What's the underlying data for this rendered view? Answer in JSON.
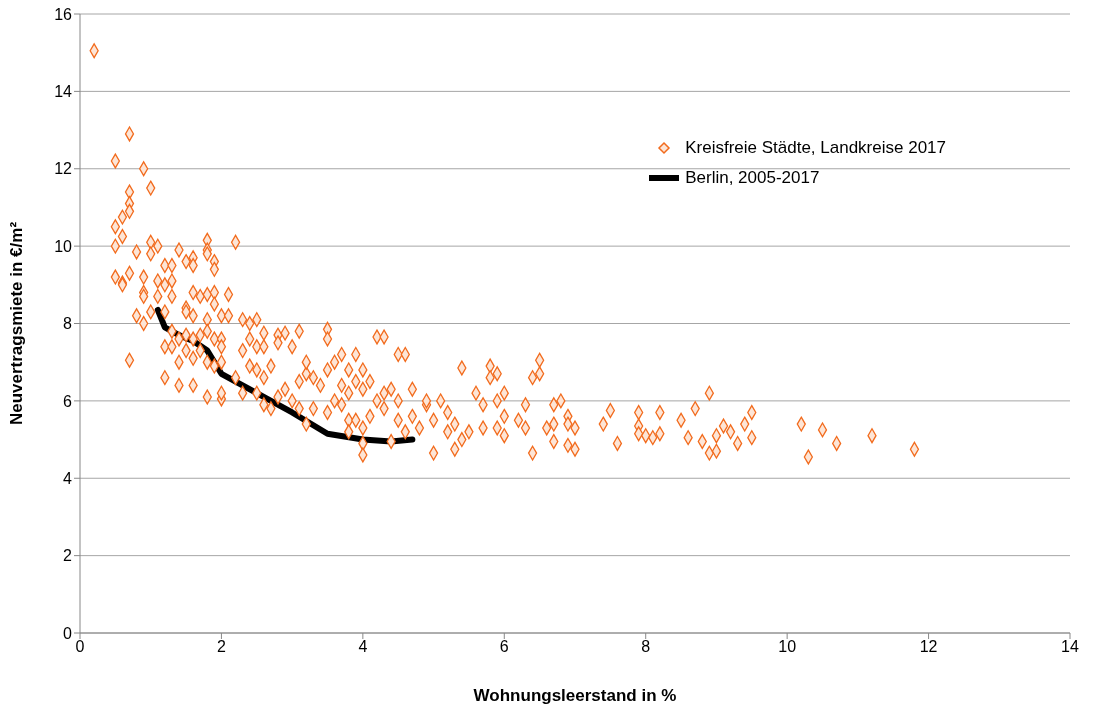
{
  "chart_data": {
    "type": "scatter",
    "xlabel": "Wohnungsleerstand in %",
    "ylabel": "Neuvertragsmiete in €/m²",
    "xlim": [
      0,
      14
    ],
    "xticks": [
      0,
      2,
      4,
      6,
      8,
      10,
      12,
      14
    ],
    "ylim": [
      0,
      16
    ],
    "yticks": [
      0,
      2,
      4,
      6,
      8,
      10,
      12,
      14,
      16
    ],
    "grid": "y",
    "legend": "top right",
    "series": [
      {
        "name": "Kreisfreie Städte, Landkreise 2017",
        "type": "scatter",
        "color": "#f26b1d",
        "marker": "diamond",
        "x": [
          0.2,
          0.5,
          0.7,
          0.9,
          1.0,
          0.7,
          0.7,
          0.7,
          0.6,
          0.5,
          0.6,
          0.5,
          1.0,
          1.1,
          1.0,
          0.8,
          0.5,
          0.6,
          0.6,
          0.7,
          0.9,
          1.1,
          1.2,
          1.3,
          1.2,
          1.3,
          1.4,
          1.5,
          1.6,
          1.6,
          1.8,
          1.8,
          1.8,
          1.9,
          1.9,
          2.2,
          0.9,
          0.9,
          0.8,
          1.0,
          0.9,
          1.1,
          1.2,
          1.3,
          1.5,
          1.5,
          1.6,
          1.7,
          1.8,
          1.9,
          1.9,
          2.1,
          2.0,
          1.6,
          1.8,
          1.3,
          1.4,
          1.5,
          1.6,
          1.7,
          1.8,
          1.9,
          2.0,
          2.0,
          2.1,
          0.7,
          1.2,
          1.3,
          1.4,
          1.5,
          1.6,
          1.7,
          1.8,
          1.9,
          2.0,
          1.2,
          1.4,
          1.6,
          1.8,
          2.0,
          2.0,
          2.2,
          2.3,
          2.3,
          2.4,
          2.5,
          2.4,
          2.5,
          2.6,
          2.6,
          2.3,
          2.4,
          2.5,
          2.6,
          2.7,
          2.8,
          2.9,
          2.8,
          3.1,
          3.0,
          2.5,
          2.6,
          2.7,
          2.8,
          2.9,
          3.0,
          3.1,
          3.2,
          3.2,
          3.3,
          3.4,
          3.5,
          3.5,
          3.5,
          3.6,
          3.7,
          3.8,
          3.7,
          3.8,
          3.6,
          3.9,
          3.9,
          4.0,
          4.0,
          4.1,
          4.2,
          4.3,
          4.2,
          4.3,
          4.4,
          4.5,
          4.6,
          4.5,
          3.1,
          3.3,
          3.2,
          3.5,
          3.7,
          3.8,
          3.8,
          3.9,
          4.0,
          4.0,
          4.0,
          4.1,
          4.3,
          4.4,
          4.5,
          4.6,
          4.7,
          4.7,
          4.8,
          4.9,
          5.0,
          4.9,
          5.0,
          5.1,
          5.2,
          5.2,
          5.3,
          5.3,
          5.4,
          5.4,
          5.5,
          5.6,
          5.7,
          5.7,
          5.8,
          5.8,
          5.9,
          5.9,
          5.9,
          6.0,
          6.0,
          6.0,
          6.2,
          6.3,
          6.3,
          6.4,
          6.5,
          6.5,
          6.4,
          6.6,
          6.7,
          6.7,
          6.8,
          6.7,
          6.9,
          6.9,
          7.0,
          7.0,
          6.9,
          7.4,
          7.5,
          7.6,
          7.9,
          7.9,
          7.9,
          8.0,
          8.1,
          8.2,
          8.2,
          8.5,
          8.6,
          8.7,
          8.8,
          8.9,
          8.9,
          9.0,
          9.0,
          9.1,
          9.2,
          9.3,
          9.4,
          9.5,
          9.5,
          10.2,
          10.3,
          10.5,
          10.7,
          11.2,
          11.8
        ],
        "values": [
          15.05,
          12.2,
          12.9,
          12.0,
          11.5,
          11.4,
          11.1,
          10.9,
          10.75,
          10.5,
          10.25,
          10.0,
          10.1,
          10.0,
          9.8,
          9.85,
          9.2,
          9.05,
          9.0,
          9.3,
          9.2,
          9.1,
          9.0,
          9.1,
          9.5,
          9.5,
          9.9,
          9.6,
          9.7,
          9.5,
          10.15,
          9.9,
          9.8,
          9.6,
          9.4,
          10.1,
          8.8,
          8.7,
          8.2,
          8.3,
          8.0,
          8.7,
          8.3,
          8.7,
          8.4,
          8.3,
          8.8,
          8.7,
          8.75,
          8.8,
          8.5,
          8.75,
          8.2,
          8.2,
          8.1,
          7.8,
          7.6,
          7.7,
          7.6,
          7.7,
          7.8,
          7.6,
          7.6,
          7.4,
          8.2,
          7.05,
          7.4,
          7.4,
          7.0,
          7.3,
          7.1,
          7.3,
          7.0,
          6.9,
          7.0,
          6.6,
          6.4,
          6.4,
          6.1,
          6.05,
          6.2,
          6.6,
          6.2,
          8.1,
          8.0,
          8.1,
          7.6,
          7.4,
          7.75,
          7.4,
          7.3,
          6.9,
          6.8,
          6.6,
          6.9,
          7.7,
          7.75,
          7.5,
          7.8,
          7.4,
          6.2,
          5.9,
          5.8,
          6.1,
          6.3,
          6.0,
          6.5,
          6.7,
          7.0,
          6.6,
          6.4,
          6.8,
          7.85,
          7.6,
          7.0,
          7.2,
          6.8,
          6.4,
          6.2,
          6.0,
          7.2,
          6.5,
          6.8,
          6.3,
          6.5,
          7.65,
          7.65,
          6.0,
          6.2,
          6.3,
          7.2,
          7.2,
          6.0,
          5.8,
          5.8,
          5.4,
          5.7,
          5.9,
          5.5,
          5.2,
          5.5,
          5.3,
          4.9,
          4.6,
          5.6,
          5.8,
          4.95,
          5.5,
          5.2,
          6.3,
          5.6,
          5.3,
          5.9,
          5.5,
          6.0,
          4.65,
          6.0,
          5.7,
          5.2,
          5.4,
          4.75,
          5.0,
          6.85,
          5.2,
          6.2,
          5.9,
          5.3,
          6.9,
          6.6,
          6.7,
          6.0,
          5.3,
          5.6,
          6.2,
          5.1,
          5.5,
          5.9,
          5.3,
          6.6,
          6.7,
          7.05,
          4.65,
          5.3,
          5.9,
          5.4,
          6.0,
          4.95,
          5.6,
          5.4,
          5.3,
          4.75,
          4.85,
          5.4,
          5.75,
          4.9,
          5.7,
          5.35,
          5.15,
          5.1,
          5.05,
          5.15,
          5.7,
          5.5,
          5.05,
          5.8,
          4.95,
          6.2,
          4.65,
          5.1,
          4.7,
          5.35,
          5.2,
          4.9,
          5.4,
          5.7,
          5.05,
          5.4,
          4.55,
          5.25,
          4.9,
          5.1,
          4.75
        ]
      },
      {
        "name": "Berlin, 2005-2017",
        "type": "line",
        "color": "#000000",
        "marker": "none",
        "line_style": "solid",
        "x": [
          1.1,
          1.2,
          1.4,
          1.6,
          1.8,
          2.0,
          2.5,
          3.0,
          3.5,
          4.0,
          4.4,
          4.7
        ],
        "values": [
          8.35,
          7.9,
          7.7,
          7.55,
          7.3,
          6.7,
          6.2,
          5.7,
          5.15,
          5.0,
          4.95,
          5.0
        ]
      }
    ]
  }
}
